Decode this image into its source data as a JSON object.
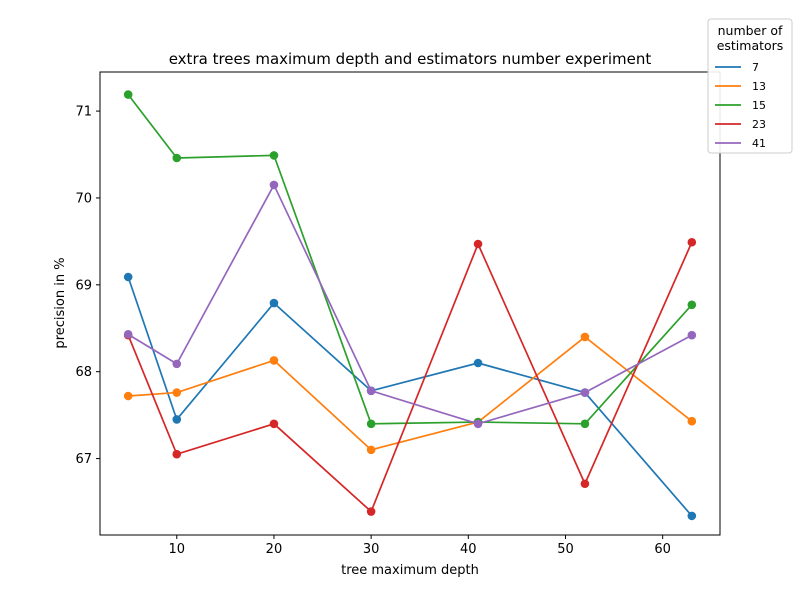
{
  "chart_data": {
    "type": "line",
    "title": "extra trees maximum depth and estimators number experiment",
    "xlabel": "tree maximum depth",
    "ylabel": "precision in %",
    "x": [
      5,
      10,
      20,
      30,
      41,
      52,
      63
    ],
    "xlim": [
      2.1,
      65.9
    ],
    "ylim": [
      66.12,
      71.45
    ],
    "xticks": [
      10,
      20,
      30,
      40,
      50,
      60
    ],
    "yticks": [
      67,
      68,
      69,
      70,
      71
    ],
    "grid": false,
    "legend": {
      "title": "number of estimators",
      "title_lines": [
        "number of",
        "estimators"
      ],
      "placement": "top-right, outside"
    },
    "series": [
      {
        "name": "7",
        "color": "#1f77b4",
        "values": [
          69.09,
          67.45,
          68.79,
          67.78,
          68.1,
          67.76,
          66.34
        ]
      },
      {
        "name": "13",
        "color": "#ff7f0e",
        "values": [
          67.72,
          67.76,
          68.13,
          67.1,
          67.42,
          68.4,
          67.43
        ]
      },
      {
        "name": "15",
        "color": "#2ca02c",
        "values": [
          71.19,
          70.46,
          70.49,
          67.4,
          67.42,
          67.4,
          68.77
        ]
      },
      {
        "name": "23",
        "color": "#d62728",
        "values": [
          68.42,
          67.05,
          67.4,
          66.39,
          69.47,
          66.71,
          69.49
        ]
      },
      {
        "name": "41",
        "color": "#9467bd",
        "values": [
          68.43,
          68.09,
          70.15,
          67.78,
          67.4,
          67.76,
          68.42
        ]
      }
    ]
  }
}
